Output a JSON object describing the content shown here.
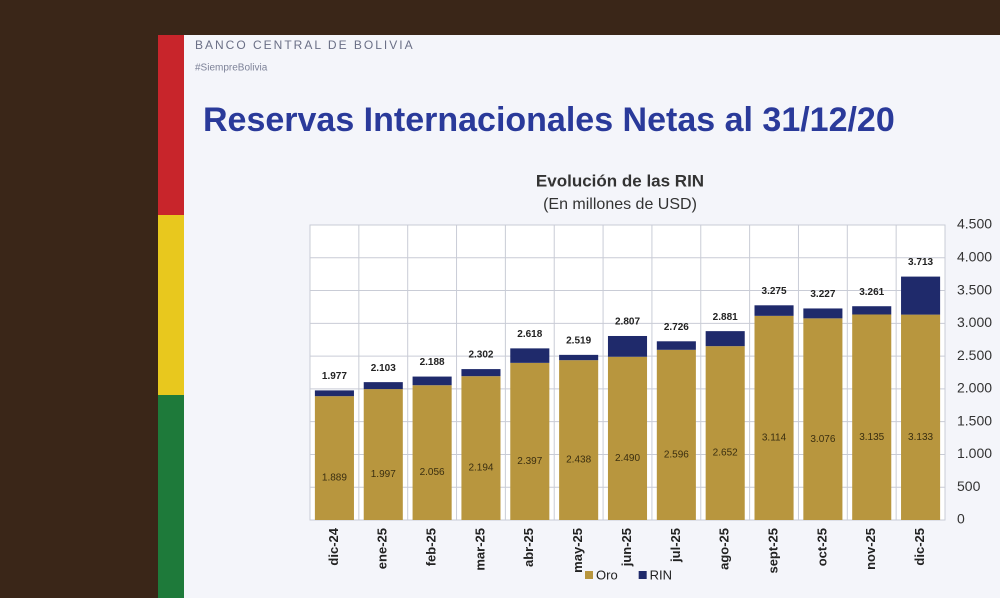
{
  "header": {
    "org": "BANCO CENTRAL DE BOLIVIA",
    "tag": "#SiempreBolivia",
    "title": "Reservas Internacionales Netas al 31/12/20"
  },
  "chart_data": {
    "type": "stacked-bar",
    "title": "Evolución de las RIN",
    "subtitle": "(En millones de USD)",
    "categories": [
      "dic-24",
      "ene-25",
      "feb-25",
      "mar-25",
      "abr-25",
      "may-25",
      "jun-25",
      "jul-25",
      "ago-25",
      "sept-25",
      "oct-25",
      "nov-25",
      "dic-25"
    ],
    "series": [
      {
        "name": "Oro",
        "color": "#b8963e",
        "values": [
          1889,
          1997,
          2056,
          2194,
          2397,
          2438,
          2490,
          2596,
          2652,
          3114,
          3076,
          3135,
          3133
        ],
        "value_labels": [
          "1.889",
          "1.997",
          "2.056",
          "2.194",
          "2.397",
          "2.438",
          "2.490",
          "2.596",
          "2.652",
          "3.114",
          "3.076",
          "3.135",
          "3.133"
        ]
      },
      {
        "name": "RIN",
        "color": "#1f2a6b",
        "values": [
          88,
          106,
          132,
          108,
          221,
          81,
          317,
          130,
          229,
          161,
          151,
          126,
          580
        ]
      }
    ],
    "totals": {
      "values": [
        1977,
        2103,
        2188,
        2302,
        2618,
        2519,
        2807,
        2726,
        2881,
        3275,
        3227,
        3261,
        3713
      ],
      "value_labels": [
        "1.977",
        "2.103",
        "2.188",
        "2.302",
        "2.618",
        "2.519",
        "2.807",
        "2.726",
        "2.881",
        "3.275",
        "3.227",
        "3.261",
        "3.713"
      ]
    },
    "ylim": [
      0,
      4500
    ],
    "yticks": [
      0,
      500,
      {
        "value": 1000,
        "label": "1.000"
      },
      {
        "value": 1500,
        "label": "1.500"
      },
      {
        "value": 2000,
        "label": "2.000"
      },
      {
        "value": 2500,
        "label": "2.500"
      },
      {
        "value": 3000,
        "label": "3.000"
      },
      {
        "value": 3500,
        "label": "3.500"
      },
      {
        "value": 4000,
        "label": "4.000"
      },
      {
        "value": 4500,
        "label": "4.500"
      }
    ],
    "grid": true,
    "legend": "bottom"
  }
}
